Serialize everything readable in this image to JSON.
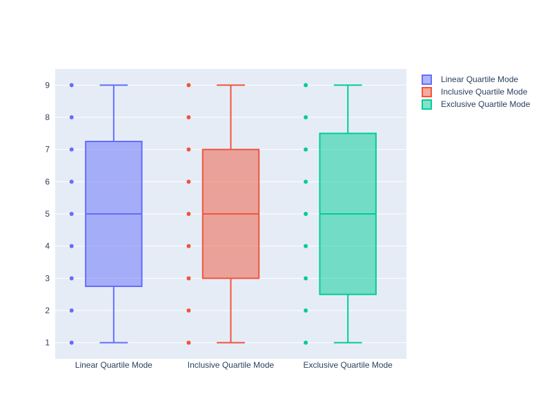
{
  "chart_data": {
    "type": "box",
    "title": "",
    "xlabel": "",
    "ylabel": "",
    "ylim": [
      0.5,
      9.5
    ],
    "yticks": [
      1,
      2,
      3,
      4,
      5,
      6,
      7,
      8,
      9
    ],
    "grid": true,
    "legend_position": "top-right",
    "categories": [
      "Linear Quartile Mode",
      "Inclusive Quartile Mode",
      "Exclusive Quartile Mode"
    ],
    "series": [
      {
        "name": "Linear Quartile Mode",
        "category": "Linear Quartile Mode",
        "color": "#636efa",
        "fill": "rgba(99,110,250,0.5)",
        "points": [
          1,
          2,
          3,
          4,
          5,
          6,
          7,
          8,
          9
        ],
        "min": 1,
        "q1": 2.75,
        "median": 5,
        "q3": 7.25,
        "max": 9
      },
      {
        "name": "Inclusive Quartile Mode",
        "category": "Inclusive Quartile Mode",
        "color": "#ef553b",
        "fill": "rgba(239,85,59,0.5)",
        "points": [
          1,
          2,
          3,
          4,
          5,
          6,
          7,
          8,
          9
        ],
        "min": 1,
        "q1": 3,
        "median": 5,
        "q3": 7,
        "max": 9
      },
      {
        "name": "Exclusive Quartile Mode",
        "category": "Exclusive Quartile Mode",
        "color": "#00cc96",
        "fill": "rgba(0,204,150,0.5)",
        "points": [
          1,
          2,
          3,
          4,
          5,
          6,
          7,
          8,
          9
        ],
        "min": 1,
        "q1": 2.5,
        "median": 5,
        "q3": 7.5,
        "max": 9
      }
    ]
  }
}
